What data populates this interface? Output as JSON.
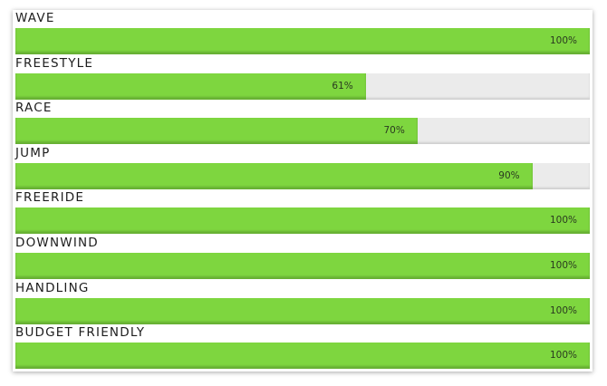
{
  "chart_data": {
    "type": "bar",
    "categories": [
      "WAVE",
      "FREESTYLE",
      "RACE",
      "JUMP",
      "FREERIDE",
      "DOWNWIND",
      "HANDLING",
      "BUDGET FRIENDLY"
    ],
    "values": [
      100,
      61,
      70,
      90,
      100,
      100,
      100,
      100
    ],
    "value_labels": [
      "100%",
      "61%",
      "70%",
      "90%",
      "100%",
      "100%",
      "100%",
      "100%"
    ],
    "xlim": [
      0,
      100
    ],
    "color": "#7ed63f"
  }
}
